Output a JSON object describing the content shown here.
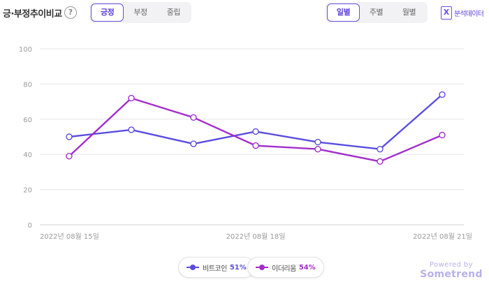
{
  "header": {
    "title": "긍·부정추이비교",
    "help_symbol": "?",
    "sentiment_tabs": [
      {
        "label": "긍정",
        "active": true
      },
      {
        "label": "부정",
        "active": false
      },
      {
        "label": "중립",
        "active": false
      }
    ],
    "period_tabs": [
      {
        "label": "일별",
        "active": true
      },
      {
        "label": "주별",
        "active": false
      },
      {
        "label": "월별",
        "active": false
      }
    ],
    "export": {
      "icon_glyph": "X",
      "label": "분석데이터"
    }
  },
  "colors": {
    "accent": "#6a4fe0",
    "series_1": "#5b4de0",
    "series_2": "#a32ecb",
    "grid": "#e6e6e6",
    "axis_text": "#9a9a9a"
  },
  "chart_data": {
    "type": "line",
    "x": [
      "2022년 08월 15일",
      "",
      "",
      "2022년 08월 18일",
      "",
      "",
      "2022년 08월 21일"
    ],
    "x_tick_labels": [
      "2022년 08월 15일",
      "2022년 08월 18일",
      "2022년 08월 21일"
    ],
    "series": [
      {
        "name": "비트코인",
        "percent": "51%",
        "values": [
          50,
          54,
          46,
          53,
          47,
          43,
          74
        ],
        "color": "#5b4de0"
      },
      {
        "name": "이더리움",
        "percent": "54%",
        "values": [
          39,
          72,
          61,
          45,
          43,
          36,
          51
        ],
        "color": "#a32ecb"
      }
    ],
    "y_ticks": [
      0,
      20,
      40,
      60,
      80,
      100
    ],
    "ylim": [
      0,
      100
    ],
    "grid": true,
    "legend_placement": "bottom-center"
  },
  "footer": {
    "powered_by": "Powered by",
    "brand": "Sometrend"
  }
}
